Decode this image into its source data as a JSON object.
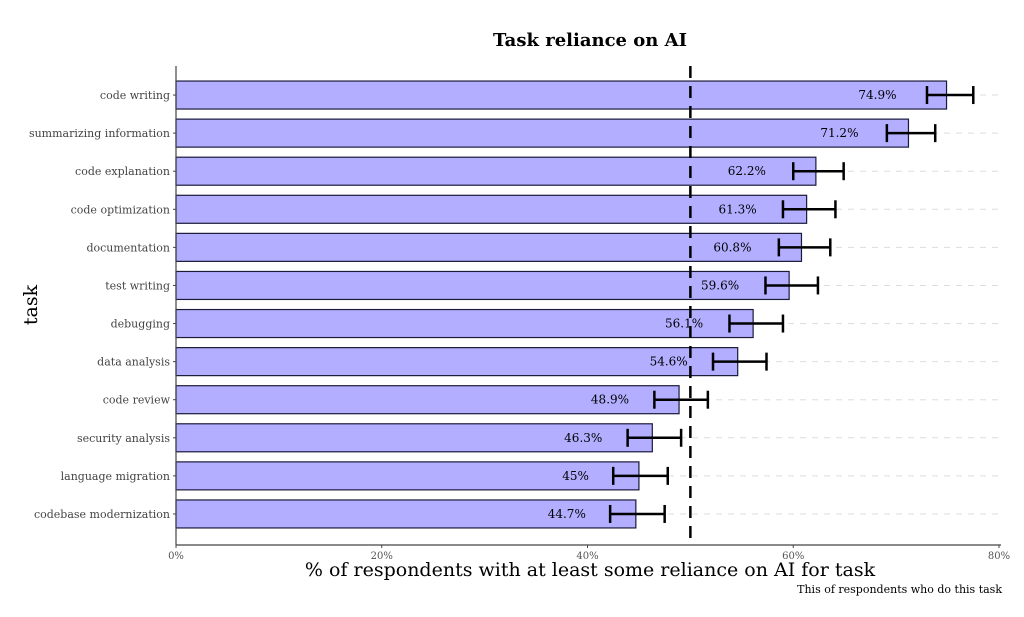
{
  "chart_data": {
    "type": "bar",
    "orientation": "horizontal",
    "title": "Task reliance on AI",
    "xlabel": "% of respondents with at least some reliance on AI for task",
    "ylabel": "task",
    "caption": "This of respondents who do this task",
    "xlim": [
      0,
      80
    ],
    "xticks": [
      "0%",
      "20%",
      "40%",
      "60%",
      "80%"
    ],
    "xtick_values": [
      0,
      20,
      40,
      60,
      80
    ],
    "reference_line": 50,
    "bar_color": "#b3aeff",
    "grid": "dashed horizontal lines at categories",
    "categories": [
      "code writing",
      "summarizing information",
      "code explanation",
      "code optimization",
      "documentation",
      "test writing",
      "debugging",
      "data analysis",
      "code review",
      "security analysis",
      "language migration",
      "codebase modernization"
    ],
    "values": [
      74.9,
      71.2,
      62.2,
      61.3,
      60.8,
      59.6,
      56.1,
      54.6,
      48.9,
      46.3,
      45,
      44.7
    ],
    "labels": [
      "74.9%",
      "71.2%",
      "62.2%",
      "61.3%",
      "60.8%",
      "59.6%",
      "56.1%",
      "54.6%",
      "48.9%",
      "46.3%",
      "45%",
      "44.7%"
    ],
    "error_low": [
      73.0,
      69.1,
      60.0,
      59.0,
      58.6,
      57.3,
      53.8,
      52.2,
      46.5,
      43.9,
      42.5,
      42.2
    ],
    "error_high": [
      77.5,
      73.8,
      64.9,
      64.1,
      63.6,
      62.4,
      59.0,
      57.4,
      51.7,
      49.1,
      47.8,
      47.5
    ]
  }
}
